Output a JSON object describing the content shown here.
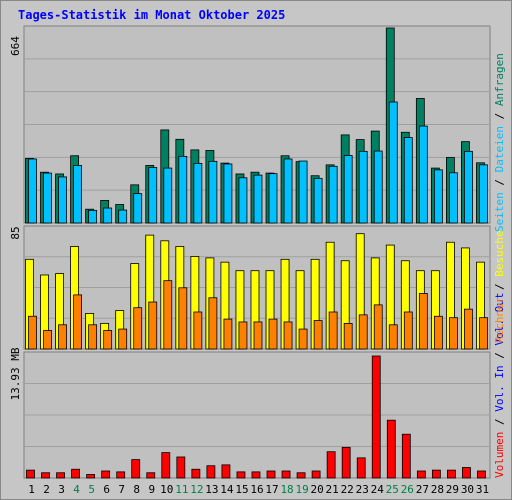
{
  "title": "Tages-Statistik im Monat Oktober 2025",
  "chart_data": [
    {
      "type": "bar",
      "ymax_label": "664",
      "categories": [
        "1",
        "2",
        "3",
        "4",
        "5",
        "6",
        "7",
        "8",
        "9",
        "10",
        "11",
        "12",
        "13",
        "14",
        "15",
        "16",
        "17",
        "18",
        "19",
        "20",
        "21",
        "22",
        "23",
        "24",
        "25",
        "26",
        "27",
        "28",
        "29",
        "30",
        "31"
      ],
      "weekend_days": [
        "4",
        "5",
        "11",
        "12",
        "18",
        "19",
        "25",
        "26"
      ],
      "ylim": [
        0,
        664
      ],
      "series": [
        {
          "name": "Anfragen",
          "color": "#008060",
          "values": [
            220,
            173,
            167,
            229,
            47,
            77,
            63,
            130,
            196,
            317,
            285,
            249,
            247,
            204,
            167,
            173,
            170,
            229,
            209,
            161,
            198,
            300,
            284,
            313,
            664,
            309,
            424,
            187,
            223,
            277,
            205
          ]
        },
        {
          "name": "Dateien",
          "color": "#00c0ff",
          "values": [
            218,
            170,
            157,
            196,
            43,
            51,
            44,
            100,
            189,
            187,
            227,
            203,
            210,
            201,
            154,
            163,
            168,
            218,
            211,
            152,
            193,
            230,
            244,
            245,
            412,
            291,
            330,
            181,
            171,
            244,
            198
          ]
        }
      ],
      "legend": [
        "Anfragen",
        "Dateien",
        "Seiten"
      ]
    },
    {
      "type": "bar",
      "ymax_label": "85",
      "ylim": [
        0,
        85
      ],
      "series": [
        {
          "name": "Besuche",
          "color": "#ffff00",
          "values": [
            63,
            52,
            53,
            72,
            25,
            18,
            27,
            60,
            80,
            76,
            72,
            65,
            64,
            61,
            55,
            55,
            55,
            63,
            55,
            63,
            75,
            62,
            81,
            64,
            73,
            62,
            55,
            55,
            75,
            71,
            61
          ]
        },
        {
          "name": "Rechner",
          "color": "#ff8000",
          "values": [
            23,
            13,
            17,
            38,
            17,
            13,
            14,
            29,
            33,
            48,
            43,
            26,
            36,
            21,
            19,
            19,
            21,
            19,
            14,
            20,
            26,
            18,
            24,
            31,
            17,
            26,
            39,
            23,
            22,
            28,
            22
          ]
        }
      ],
      "legend": [
        "Besuche",
        "Rechner"
      ]
    },
    {
      "type": "bar",
      "ymax_label": "13.93 MB",
      "ylim": [
        0,
        13.93
      ],
      "series": [
        {
          "name": "Volumen",
          "color": "#ff0000",
          "values": [
            0.9,
            0.6,
            0.6,
            1.0,
            0.4,
            0.8,
            0.7,
            2.1,
            0.6,
            2.9,
            2.4,
            1.0,
            1.4,
            1.5,
            0.7,
            0.7,
            0.8,
            0.8,
            0.6,
            0.8,
            3.0,
            3.5,
            2.3,
            13.93,
            6.6,
            5.0,
            0.8,
            0.9,
            0.9,
            1.2,
            0.8
          ]
        }
      ],
      "legend": [
        "Volumen",
        "Vol. In",
        "Vol. Out"
      ]
    }
  ],
  "colors": {
    "background": "#c6c6c6",
    "plot_bg": "#c0c0c0",
    "grid": "#a0a0a0",
    "title": "#0000ff",
    "weekday_label": "#000000",
    "weekend_label": "#00804a",
    "seiten": "#00c0ff",
    "vol_in": "#0000ff",
    "vol_out": "#0000ff"
  }
}
